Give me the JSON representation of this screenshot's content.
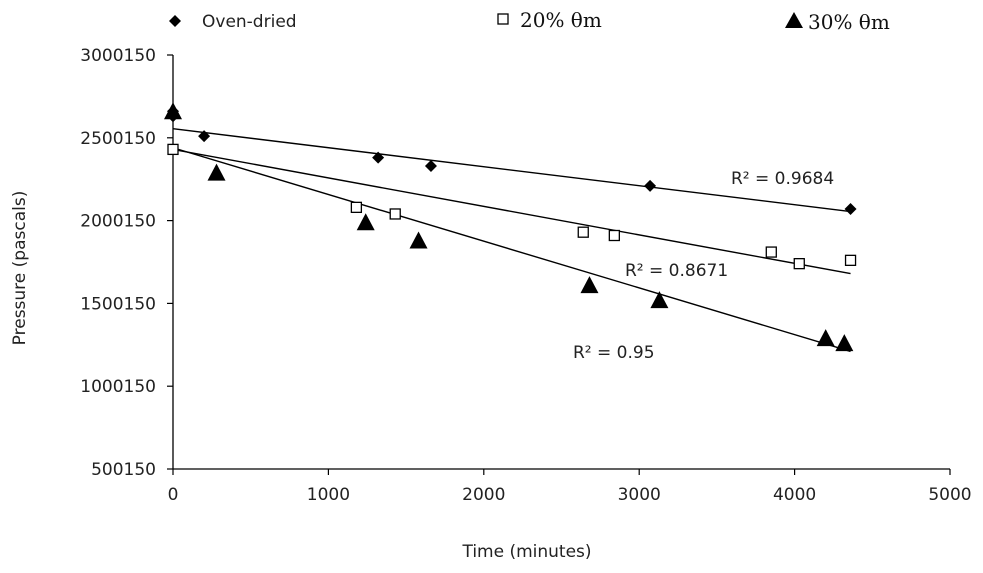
{
  "chart_data": {
    "type": "scatter",
    "xlabel": "Time (minutes)",
    "ylabel": "Pressure (pascals)",
    "xlim": [
      0,
      5000
    ],
    "ylim": [
      500150,
      3000150
    ],
    "x_ticks": [
      "0",
      "1000",
      "2000",
      "3000",
      "4000",
      "5000"
    ],
    "y_ticks": [
      "500150",
      "1000150",
      "1500150",
      "2000150",
      "2500150",
      "3000150"
    ],
    "grid": false,
    "legend_position": "top",
    "series": [
      {
        "name": "Oven-dried",
        "marker": "diamond",
        "color": "#000000",
        "points": [
          [
            0,
            2660150
          ],
          [
            0,
            2630150
          ],
          [
            200,
            2510150
          ],
          [
            1320,
            2380150
          ],
          [
            1660,
            2330150
          ],
          [
            3070,
            2210150
          ],
          [
            4360,
            2070150
          ]
        ],
        "trendline": {
          "x": [
            0,
            4360
          ],
          "y": [
            2555000,
            2055000
          ]
        },
        "r2_label": "R² = 0.9684"
      },
      {
        "name": "20% θm",
        "marker": "square-open",
        "color": "#000000",
        "points": [
          [
            0,
            2430150
          ],
          [
            1180,
            2080150
          ],
          [
            1430,
            2040150
          ],
          [
            2640,
            1930150
          ],
          [
            2840,
            1910150
          ],
          [
            3850,
            1810150
          ],
          [
            4030,
            1740150
          ],
          [
            4360,
            1760150
          ]
        ],
        "trendline": {
          "x": [
            0,
            4360
          ],
          "y": [
            2430000,
            1680000
          ]
        },
        "r2_label": "R² = 0.8671"
      },
      {
        "name": "30% θm",
        "marker": "triangle",
        "color": "#000000",
        "points": [
          [
            0,
            2660150
          ],
          [
            280,
            2290150
          ],
          [
            1240,
            1990150
          ],
          [
            1580,
            1880150
          ],
          [
            2680,
            1610150
          ],
          [
            3130,
            1520150
          ],
          [
            4200,
            1290150
          ],
          [
            4320,
            1260150
          ]
        ],
        "trendline": {
          "x": [
            0,
            4360
          ],
          "y": [
            2440000,
            1210000
          ]
        },
        "r2_label": "R² = 0.95"
      }
    ]
  }
}
